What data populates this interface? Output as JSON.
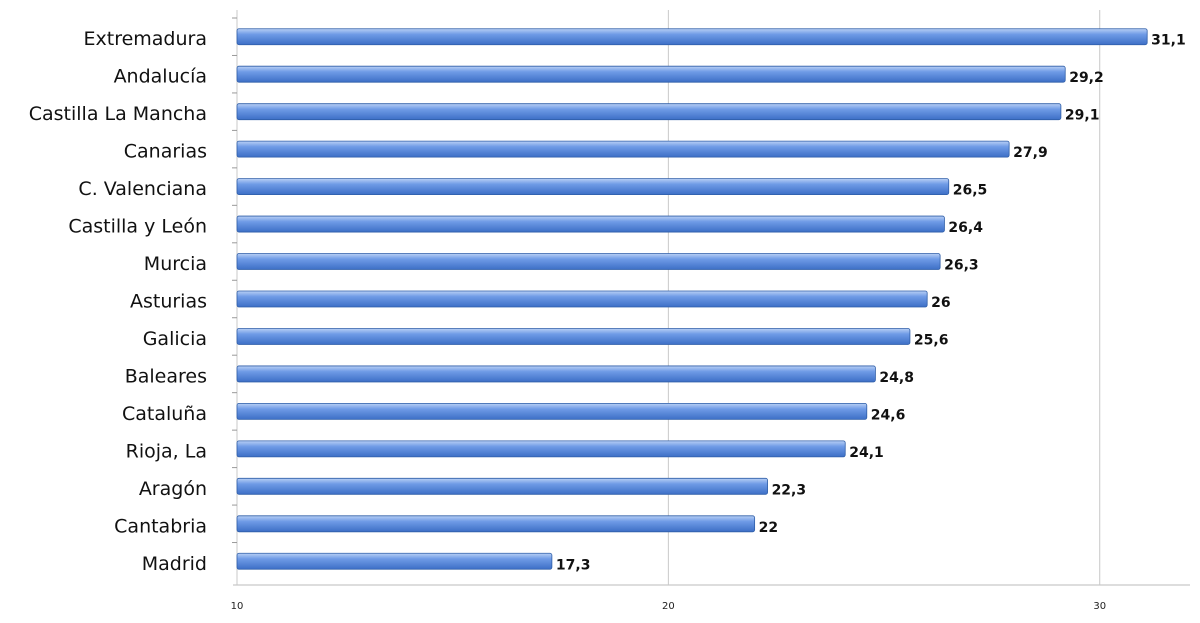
{
  "chart_data": {
    "type": "bar",
    "orientation": "horizontal",
    "categories": [
      "Extremadura",
      "Andalucía",
      "Castilla La Mancha",
      "Canarias",
      "C. Valenciana",
      "Castilla y León",
      "Murcia",
      "Asturias",
      "Galicia",
      "Baleares",
      "Cataluña",
      "Rioja, La",
      "Aragón",
      "Cantabria",
      "Madrid"
    ],
    "values": [
      31.1,
      29.2,
      29.1,
      27.9,
      26.5,
      26.4,
      26.3,
      26,
      25.6,
      24.8,
      24.6,
      24.1,
      22.3,
      22,
      17.3
    ],
    "value_labels": [
      "31,1",
      "29,2",
      "29,1",
      "27,9",
      "26,5",
      "26,4",
      "26,3",
      "26",
      "25,6",
      "24,8",
      "24,6",
      "24,1",
      "22,3",
      "22",
      "17,3"
    ],
    "color": "#4a7fd8",
    "xlim": [
      10,
      32
    ],
    "xticks": [
      10,
      20,
      30
    ],
    "grid": true
  }
}
